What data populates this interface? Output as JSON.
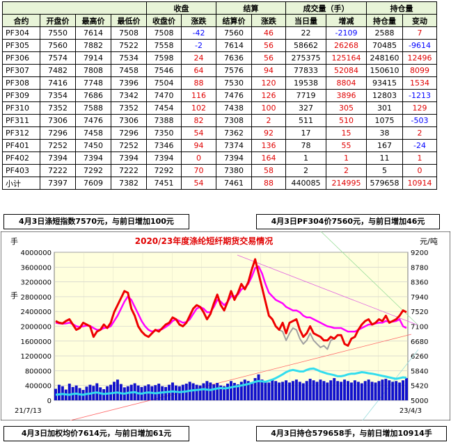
{
  "table": {
    "header1": {
      "close": "收盘",
      "settle": "结算",
      "volume": "成交量（手）",
      "oi": "持仓量"
    },
    "header2": [
      "合约",
      "开盘价",
      "最高价",
      "最低价",
      "收盘价",
      "涨跌",
      "结算价",
      "涨跌",
      "当日量",
      "增减",
      "持仓量",
      "变动"
    ],
    "rows": [
      [
        "PF304",
        "7550",
        "7614",
        "7508",
        "7508",
        "-42",
        "7560",
        "46",
        "22",
        "-2109",
        "2588",
        "7"
      ],
      [
        "PF305",
        "7560",
        "7882",
        "7522",
        "7558",
        "-2",
        "7614",
        "56",
        "58662",
        "26268",
        "70485",
        "-9614"
      ],
      [
        "PF306",
        "7574",
        "7914",
        "7534",
        "7598",
        "24",
        "7636",
        "56",
        "275375",
        "125164",
        "248160",
        "12496"
      ],
      [
        "PF307",
        "7482",
        "7808",
        "7458",
        "7546",
        "64",
        "7576",
        "94",
        "77833",
        "52084",
        "150610",
        "8099"
      ],
      [
        "PF308",
        "7416",
        "7748",
        "7396",
        "7504",
        "88",
        "7530",
        "120",
        "19538",
        "8804",
        "93415",
        "1534"
      ],
      [
        "PF309",
        "7354",
        "7686",
        "7342",
        "7470",
        "116",
        "7476",
        "126",
        "7719",
        "3896",
        "12803",
        "-1213"
      ],
      [
        "PF310",
        "7352",
        "7588",
        "7352",
        "7454",
        "102",
        "7438",
        "100",
        "327",
        "305",
        "301",
        "129"
      ],
      [
        "PF311",
        "7306",
        "7476",
        "7306",
        "7388",
        "82",
        "7308",
        "2",
        "511",
        "510",
        "1075",
        "-503"
      ],
      [
        "PF312",
        "7296",
        "7458",
        "7296",
        "7350",
        "54",
        "7362",
        "92",
        "17",
        "15",
        "38",
        "2"
      ],
      [
        "PF401",
        "7252",
        "7450",
        "7252",
        "7346",
        "94",
        "7374",
        "136",
        "78",
        "55",
        "167",
        "-24"
      ],
      [
        "PF402",
        "7394",
        "7394",
        "7394",
        "7394",
        "0",
        "7394",
        "164",
        "1",
        "1",
        "11",
        "1"
      ],
      [
        "PF403",
        "7222",
        "7292",
        "7222",
        "7292",
        "70",
        "7380",
        "58",
        "2",
        "2",
        "5",
        "0"
      ],
      [
        "小计",
        "7397",
        "7609",
        "7382",
        "7451",
        "54",
        "7461",
        "88",
        "440085",
        "214995",
        "579658",
        "10914"
      ]
    ]
  },
  "notes": {
    "index": "4月3日涤短指数7570元，与前日增加100元",
    "pf304": "4月3日PF304价7560元，与前日增加46元",
    "wavg": "4月3日加权均价7614元，与前日增加61元",
    "oi": "4月3日持仓579658手，与前日增加10914手"
  },
  "colors": {
    "header_bg": "#e8f4d8",
    "chart_bg": "#ffffdd",
    "red_text": "#e00000",
    "blue_text": "#0000ff",
    "price_line": "#ee0000",
    "ma_line": "#ff00ff",
    "gray_line": "#a0a0a0",
    "oi_line": "#33ddee",
    "volume_bars": "#1010cc"
  },
  "chart_data": {
    "type": "line",
    "title": "2020/23年度涤纶短纤期货交易情况",
    "left_unit": "手",
    "right_unit": "元/吨",
    "left_axis": {
      "ylim": [
        0,
        4000000
      ],
      "ticks": [
        "0",
        "400000",
        "800000",
        "1200000",
        "1600000",
        "2000000",
        "2400000",
        "2800000",
        "3200000",
        "3600000",
        "4000000"
      ]
    },
    "right_axis": {
      "ylim": [
        5000,
        9200
      ],
      "ticks": [
        "5000",
        "5420",
        "5840",
        "6260",
        "6680",
        "7100",
        "7520",
        "7940",
        "8360",
        "8780",
        "9200"
      ]
    },
    "x_start": "21/7/13",
    "x_end": "23/4/3",
    "series_price_red": [
      7250,
      7200,
      7180,
      7250,
      7300,
      7150,
      7000,
      7050,
      7200,
      7150,
      7100,
      6800,
      6950,
      7000,
      7150,
      7050,
      7200,
      7500,
      7700,
      7900,
      8100,
      8050,
      7600,
      7400,
      7100,
      6950,
      6850,
      6800,
      6900,
      7000,
      6950,
      7050,
      7150,
      7200,
      7350,
      7300,
      7150,
      7100,
      7200,
      7400,
      7600,
      7700,
      7650,
      7500,
      7300,
      7450,
      7750,
      8000,
      7700,
      7550,
      7800,
      8100,
      7850,
      8050,
      8300,
      8150,
      8350,
      8700,
      9000,
      8600,
      8200,
      7800,
      7400,
      7300,
      7100,
      7000,
      7200,
      6900,
      7200,
      7250,
      7300,
      7000,
      6800,
      6900,
      7100,
      6900,
      6850,
      6800,
      6700,
      6700,
      6800,
      6750,
      6850,
      6850,
      6600,
      6550,
      6750,
      6800,
      7000,
      7150,
      7250,
      7300,
      7150,
      7200,
      7300,
      7250,
      7400,
      7200,
      7250,
      7300,
      7400,
      7550,
      7500
    ],
    "series_ma_magenta": [
      7200,
      7180,
      7170,
      7180,
      7200,
      7160,
      7100,
      7080,
      7100,
      7120,
      7110,
      7050,
      7000,
      7000,
      7050,
      7060,
      7100,
      7250,
      7400,
      7600,
      7800,
      7950,
      7850,
      7650,
      7450,
      7250,
      7100,
      7000,
      6950,
      6980,
      7000,
      7020,
      7080,
      7150,
      7250,
      7300,
      7250,
      7200,
      7220,
      7300,
      7450,
      7600,
      7650,
      7600,
      7500,
      7500,
      7650,
      7850,
      7800,
      7700,
      7800,
      7950,
      7950,
      8000,
      8150,
      8200,
      8300,
      8500,
      8750,
      8800,
      8600,
      8300,
      8050,
      7950,
      7850,
      7800,
      7750,
      7650,
      7600,
      7550,
      7550,
      7500,
      7400,
      7350,
      7350,
      7300,
      7250,
      7200,
      7150,
      7100,
      7080,
      7050,
      7050,
      7050,
      7000,
      6950,
      6950,
      6950,
      7000,
      7050,
      7100,
      7150,
      7150,
      7180,
      7200,
      7200,
      7250,
      7230,
      7230,
      7250,
      7300,
      7100,
      7050
    ],
    "series_gray": [
      7250,
      7200,
      7180,
      7250,
      7300,
      7150,
      7000,
      7050,
      7200,
      7150,
      7100,
      6800,
      6950,
      7000,
      7150,
      7050,
      7200,
      7500,
      7700,
      7900,
      8100,
      8050,
      7600,
      7400,
      7100,
      6950,
      6850,
      6800,
      6900,
      7000,
      6950,
      7050,
      7150,
      7200,
      7350,
      7300,
      7150,
      7100,
      7200,
      7400,
      7600,
      7700,
      7650,
      7500,
      7300,
      7450,
      7750,
      8000,
      7700,
      7550,
      7800,
      8100,
      7850,
      8050,
      8300,
      8150,
      8350,
      8700,
      9000,
      8600,
      8200,
      7800,
      7400,
      7300,
      7100,
      7000,
      6950,
      6700,
      6900,
      7050,
      7000,
      6750,
      6600,
      6700,
      6900,
      6700,
      6600,
      6500,
      6550,
      6450,
      6700,
      6750,
      6850,
      6850,
      6600,
      6550,
      6750,
      6800,
      7000,
      7150,
      7250,
      7300,
      7150,
      7200,
      7300,
      7250,
      7400,
      7200,
      7250,
      7300,
      7400,
      7550,
      7500
    ],
    "series_oi_cyan": [
      150000,
      160000,
      170000,
      160000,
      150000,
      170000,
      180000,
      160000,
      150000,
      170000,
      180000,
      200000,
      210000,
      190000,
      170000,
      180000,
      190000,
      200000,
      210000,
      190000,
      180000,
      200000,
      210000,
      220000,
      190000,
      180000,
      200000,
      210000,
      200000,
      190000,
      200000,
      210000,
      220000,
      230000,
      240000,
      230000,
      220000,
      230000,
      240000,
      260000,
      270000,
      280000,
      290000,
      300000,
      290000,
      280000,
      300000,
      320000,
      330000,
      320000,
      330000,
      350000,
      370000,
      380000,
      400000,
      420000,
      440000,
      470000,
      500000,
      520000,
      510000,
      500000,
      530000,
      560000,
      600000,
      650000,
      700000,
      760000,
      800000,
      820000,
      800000,
      780000,
      780000,
      820000,
      850000,
      860000,
      820000,
      780000,
      750000,
      720000,
      700000,
      680000,
      650000,
      650000,
      670000,
      700000,
      720000,
      720000,
      740000,
      760000,
      750000,
      730000,
      720000,
      700000,
      680000,
      660000,
      640000,
      620000,
      600000,
      580000,
      600000,
      620000,
      610000
    ],
    "series_volume_bars": [
      310000,
      420000,
      380000,
      290000,
      450000,
      360000,
      400000,
      330000,
      280000,
      370000,
      420000,
      390000,
      460000,
      350000,
      300000,
      380000,
      420000,
      500000,
      560000,
      440000,
      350000,
      380000,
      420000,
      460000,
      400000,
      360000,
      390000,
      430000,
      380000,
      410000,
      450000,
      380000,
      360000,
      420000,
      480000,
      400000,
      380000,
      420000,
      450000,
      500000,
      460000,
      420000,
      400000,
      460000,
      520000,
      480000,
      430000,
      470000,
      400000,
      380000,
      450000,
      520000,
      470000,
      430000,
      500000,
      560000,
      520000,
      480000,
      600000,
      700000,
      560000,
      520000,
      480000,
      560000,
      520000,
      480000,
      500000,
      540000,
      480000,
      520000,
      560000,
      500000,
      460000,
      520000,
      580000,
      540000,
      500000,
      560000,
      520000,
      480000,
      540000,
      600000,
      520000,
      500000,
      560000,
      520000,
      480000,
      540000,
      500000,
      460000,
      520000,
      560000,
      500000,
      480000,
      520000,
      560000,
      580000,
      540000,
      500000,
      520000,
      480000,
      540000,
      600000
    ]
  }
}
